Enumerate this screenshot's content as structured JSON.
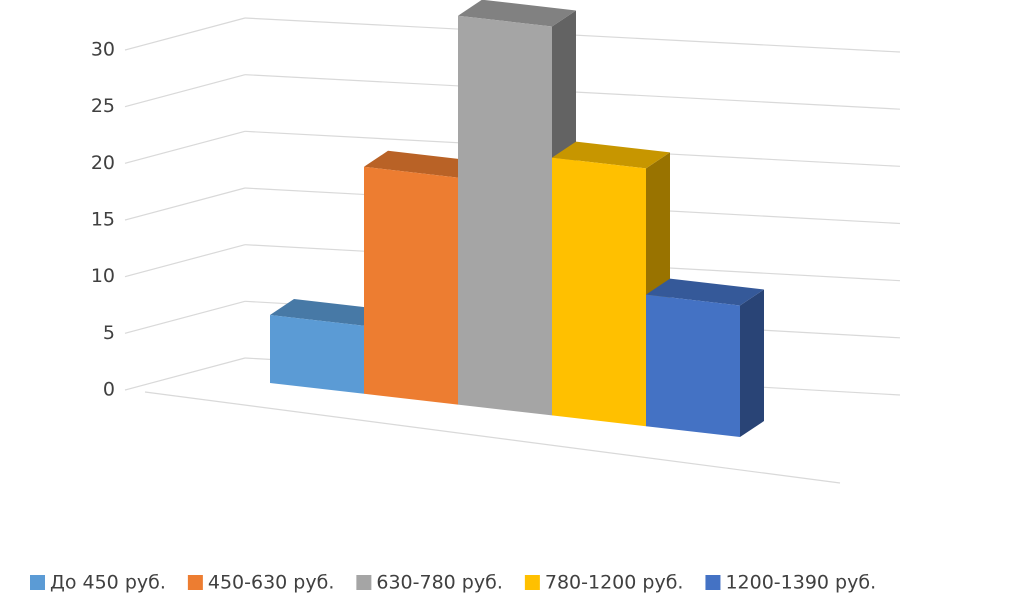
{
  "chart_data": {
    "type": "bar3d",
    "series": [
      {
        "name": "До 450 руб.",
        "color": "#5b9bd5",
        "values": [
          6
        ]
      },
      {
        "name": "450-630 руб.",
        "color": "#ed7d31",
        "values": [
          18
        ]
      },
      {
        "name": "630-780 руб.",
        "color": "#a5a5a5",
        "values": [
          28
        ]
      },
      {
        "name": "780-1200 руб.",
        "color": "#ffc000",
        "values": [
          17
        ]
      },
      {
        "name": "1200-1390 руб.",
        "color": "#4472c4",
        "values": [
          8
        ]
      }
    ],
    "ylim": [
      0,
      30
    ],
    "yticks": [
      0,
      5,
      10,
      15,
      20,
      25,
      30
    ],
    "grid": true,
    "legend": "bottom"
  }
}
